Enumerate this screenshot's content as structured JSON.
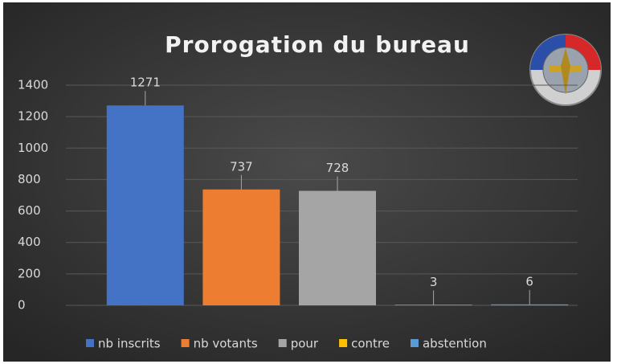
{
  "chart_data": {
    "type": "bar",
    "title": "Prorogation du bureau",
    "categories": [
      "nb inscrits",
      "nb votants",
      "pour",
      "contre",
      "abstention"
    ],
    "values": [
      1271,
      737,
      728,
      3,
      6
    ],
    "colors": [
      "#4472c4",
      "#ed7d31",
      "#a5a5a5",
      "#ffc000",
      "#5b9bd5"
    ],
    "ylim": [
      0,
      1400
    ],
    "yticks": [
      0,
      200,
      400,
      600,
      800,
      1000,
      1200,
      1400
    ],
    "grid": true,
    "legend": "bottom"
  }
}
